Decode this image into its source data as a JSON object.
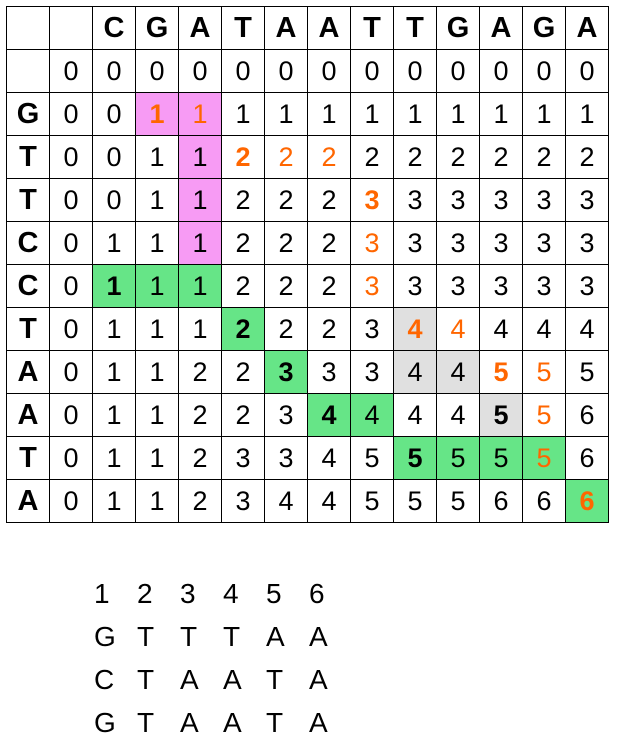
{
  "matrix": {
    "column_sequence": [
      "C",
      "G",
      "A",
      "T",
      "A",
      "A",
      "T",
      "T",
      "G",
      "A",
      "G",
      "A"
    ],
    "row_sequence": [
      "G",
      "T",
      "T",
      "C",
      "C",
      "T",
      "A",
      "A",
      "T",
      "A"
    ],
    "rows": [
      [
        0,
        0,
        0,
        0,
        0,
        0,
        0,
        0,
        0,
        0,
        0,
        0,
        0
      ],
      [
        0,
        0,
        1,
        1,
        1,
        1,
        1,
        1,
        1,
        1,
        1,
        1,
        1
      ],
      [
        0,
        0,
        1,
        1,
        2,
        2,
        2,
        2,
        2,
        2,
        2,
        2,
        2
      ],
      [
        0,
        0,
        1,
        1,
        2,
        2,
        2,
        3,
        3,
        3,
        3,
        3,
        3
      ],
      [
        0,
        1,
        1,
        1,
        2,
        2,
        2,
        3,
        3,
        3,
        3,
        3,
        3
      ],
      [
        0,
        1,
        1,
        1,
        2,
        2,
        2,
        3,
        3,
        3,
        3,
        3,
        3
      ],
      [
        0,
        1,
        1,
        1,
        2,
        2,
        2,
        3,
        4,
        4,
        4,
        4,
        4
      ],
      [
        0,
        1,
        1,
        2,
        2,
        3,
        3,
        3,
        4,
        4,
        5,
        5,
        5
      ],
      [
        0,
        1,
        1,
        2,
        2,
        3,
        4,
        4,
        4,
        4,
        5,
        5,
        6
      ],
      [
        0,
        1,
        1,
        2,
        3,
        3,
        4,
        5,
        5,
        5,
        5,
        5,
        6
      ],
      [
        0,
        1,
        1,
        2,
        3,
        4,
        4,
        5,
        5,
        5,
        6,
        6,
        6
      ]
    ],
    "colors": {
      "pink": "#f79bf4",
      "green": "#66e587",
      "gray": "#e0e0e0",
      "orange": "#ff6600",
      "black": "#000000"
    },
    "highlights": [
      {
        "row": 1,
        "col": 2,
        "fill": "pink",
        "text": "orange",
        "bold": true
      },
      {
        "row": 1,
        "col": 3,
        "fill": "pink",
        "text": "orange",
        "bold": false
      },
      {
        "row": 2,
        "col": 3,
        "fill": "pink",
        "text": "black",
        "bold": false
      },
      {
        "row": 2,
        "col": 4,
        "fill": "none",
        "text": "orange",
        "bold": true
      },
      {
        "row": 2,
        "col": 5,
        "fill": "none",
        "text": "orange",
        "bold": false
      },
      {
        "row": 2,
        "col": 6,
        "fill": "none",
        "text": "orange",
        "bold": false
      },
      {
        "row": 3,
        "col": 3,
        "fill": "pink",
        "text": "black",
        "bold": false
      },
      {
        "row": 3,
        "col": 7,
        "fill": "none",
        "text": "orange",
        "bold": true
      },
      {
        "row": 4,
        "col": 3,
        "fill": "pink",
        "text": "black",
        "bold": false
      },
      {
        "row": 4,
        "col": 7,
        "fill": "none",
        "text": "orange",
        "bold": false
      },
      {
        "row": 5,
        "col": 1,
        "fill": "green",
        "text": "black",
        "bold": true
      },
      {
        "row": 5,
        "col": 2,
        "fill": "green",
        "text": "black",
        "bold": false
      },
      {
        "row": 5,
        "col": 3,
        "fill": "green",
        "text": "black",
        "bold": false
      },
      {
        "row": 5,
        "col": 7,
        "fill": "none",
        "text": "orange",
        "bold": false
      },
      {
        "row": 6,
        "col": 4,
        "fill": "green",
        "text": "black",
        "bold": true
      },
      {
        "row": 6,
        "col": 8,
        "fill": "gray",
        "text": "orange",
        "bold": true
      },
      {
        "row": 6,
        "col": 9,
        "fill": "none",
        "text": "orange",
        "bold": false
      },
      {
        "row": 7,
        "col": 5,
        "fill": "green",
        "text": "black",
        "bold": true
      },
      {
        "row": 7,
        "col": 8,
        "fill": "gray",
        "text": "black",
        "bold": false
      },
      {
        "row": 7,
        "col": 9,
        "fill": "gray",
        "text": "black",
        "bold": false
      },
      {
        "row": 7,
        "col": 10,
        "fill": "none",
        "text": "orange",
        "bold": true
      },
      {
        "row": 7,
        "col": 11,
        "fill": "none",
        "text": "orange",
        "bold": false
      },
      {
        "row": 8,
        "col": 6,
        "fill": "green",
        "text": "black",
        "bold": true
      },
      {
        "row": 8,
        "col": 7,
        "fill": "green",
        "text": "black",
        "bold": false
      },
      {
        "row": 8,
        "col": 10,
        "fill": "gray",
        "text": "black",
        "bold": true
      },
      {
        "row": 8,
        "col": 11,
        "fill": "none",
        "text": "orange",
        "bold": false
      },
      {
        "row": 9,
        "col": 8,
        "fill": "green",
        "text": "black",
        "bold": true
      },
      {
        "row": 9,
        "col": 9,
        "fill": "green",
        "text": "black",
        "bold": false
      },
      {
        "row": 9,
        "col": 10,
        "fill": "green",
        "text": "black",
        "bold": false
      },
      {
        "row": 9,
        "col": 11,
        "fill": "green",
        "text": "orange",
        "bold": false
      },
      {
        "row": 10,
        "col": 12,
        "fill": "green",
        "text": "orange",
        "bold": true
      }
    ]
  },
  "alignment": {
    "positions": [
      "1",
      "2",
      "3",
      "4",
      "5",
      "6"
    ],
    "lines": [
      [
        "G",
        "T",
        "T",
        "T",
        "A",
        "A"
      ],
      [
        "C",
        "T",
        "A",
        "A",
        "T",
        "A"
      ],
      [
        "G",
        "T",
        "A",
        "A",
        "T",
        "A"
      ]
    ]
  }
}
